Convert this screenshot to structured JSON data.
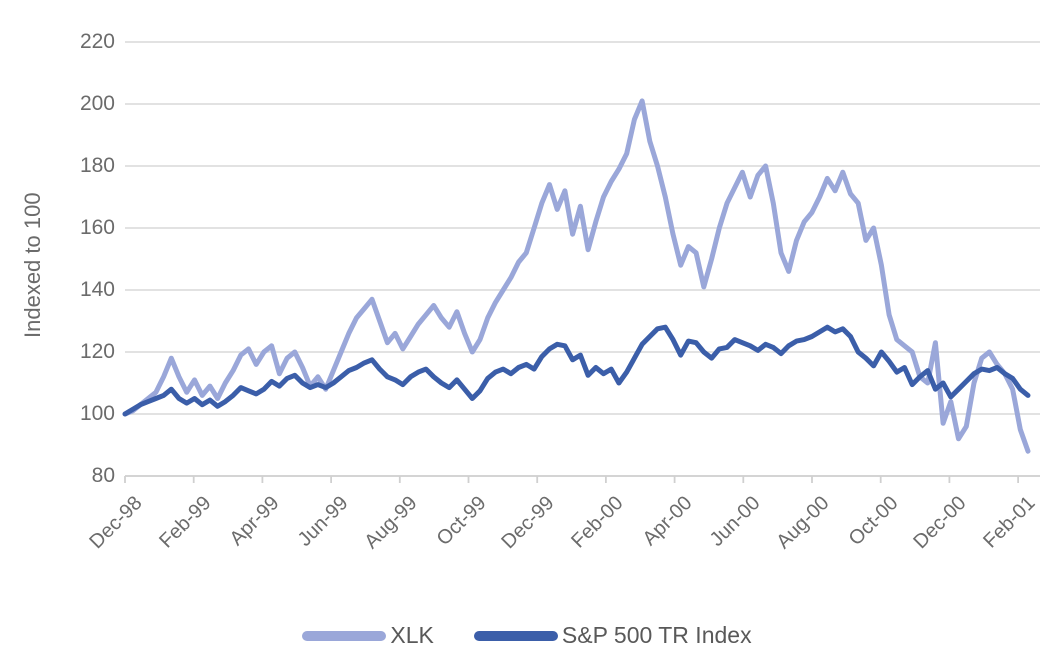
{
  "chart_data": {
    "type": "line",
    "title": "",
    "ylabel": "Indexed to 100",
    "xlabel": "",
    "ylim": [
      80,
      220
    ],
    "yticks": [
      220,
      200,
      180,
      160,
      140,
      120,
      100,
      80
    ],
    "xtick_labels": [
      "Dec-98",
      "Feb-99",
      "Apr-99",
      "Jun-99",
      "Aug-99",
      "Oct-99",
      "Dec-99",
      "Feb-00",
      "Apr-00",
      "Jun-00",
      "Aug-00",
      "Oct-00",
      "Dec-00",
      "Feb-01"
    ],
    "x_description": "Weekly observations from Dec-98 to Feb-01, evenly spaced",
    "grid": "horizontal",
    "legend_position": "bottom-center",
    "colors": {
      "grid": "#d9d9d9",
      "axis": "#d0d0d0",
      "tick_text": "#6b6b6b",
      "legend_text": "#595959"
    },
    "series": [
      {
        "name": "XLK",
        "color": "#9aa7d9",
        "values": [
          100,
          101,
          103,
          105,
          107,
          112,
          118,
          112,
          107,
          111,
          106,
          109,
          105,
          110,
          114,
          119,
          121,
          116,
          120,
          122,
          113,
          118,
          120,
          115,
          109,
          112,
          108,
          114,
          120,
          126,
          131,
          134,
          137,
          130,
          123,
          126,
          121,
          125,
          129,
          132,
          135,
          131,
          128,
          133,
          126,
          120,
          124,
          131,
          136,
          140,
          144,
          149,
          152,
          160,
          168,
          174,
          166,
          172,
          158,
          167,
          153,
          162,
          170,
          175,
          179,
          184,
          195,
          201,
          188,
          180,
          170,
          158,
          148,
          154,
          152,
          141,
          150,
          160,
          168,
          173,
          178,
          170,
          177,
          180,
          168,
          152,
          146,
          156,
          162,
          165,
          170,
          176,
          172,
          178,
          171,
          168,
          156,
          160,
          148,
          132,
          124,
          122,
          120,
          112,
          110,
          123,
          97,
          104,
          92,
          96,
          110,
          118,
          120,
          116,
          113,
          108,
          95,
          88
        ]
      },
      {
        "name": "S&P 500 TR Index",
        "color": "#3b5ea9",
        "values": [
          100,
          101.5,
          103,
          104,
          105,
          106,
          108,
          105,
          103.5,
          105,
          103,
          104.5,
          102.5,
          104,
          106,
          108.5,
          107.5,
          106.5,
          108,
          110.5,
          109,
          111.5,
          112.5,
          110,
          108.5,
          109.5,
          108.5,
          110,
          112,
          114,
          115,
          116.5,
          117.5,
          114.5,
          112,
          111,
          109.5,
          112,
          113.5,
          114.5,
          112,
          110,
          108.5,
          111,
          108,
          105,
          107.5,
          111.5,
          113.5,
          114.5,
          113,
          115,
          116,
          114.5,
          118.5,
          121,
          122.5,
          122,
          117.5,
          119,
          112.5,
          115,
          113,
          114.5,
          110,
          113.5,
          118,
          122.5,
          125,
          127.5,
          128,
          124,
          119,
          123.5,
          123,
          120,
          118,
          121,
          121.5,
          124,
          123,
          122,
          120.5,
          122.5,
          121.5,
          119.5,
          122,
          123.5,
          124,
          125,
          126.5,
          128,
          126.5,
          127.5,
          125,
          120,
          118,
          115.5,
          120,
          117,
          113.5,
          115,
          109.5,
          112,
          114,
          108,
          110,
          105.5,
          108,
          110.5,
          113,
          114.5,
          114,
          115,
          113,
          111.5,
          108,
          106
        ]
      }
    ]
  }
}
